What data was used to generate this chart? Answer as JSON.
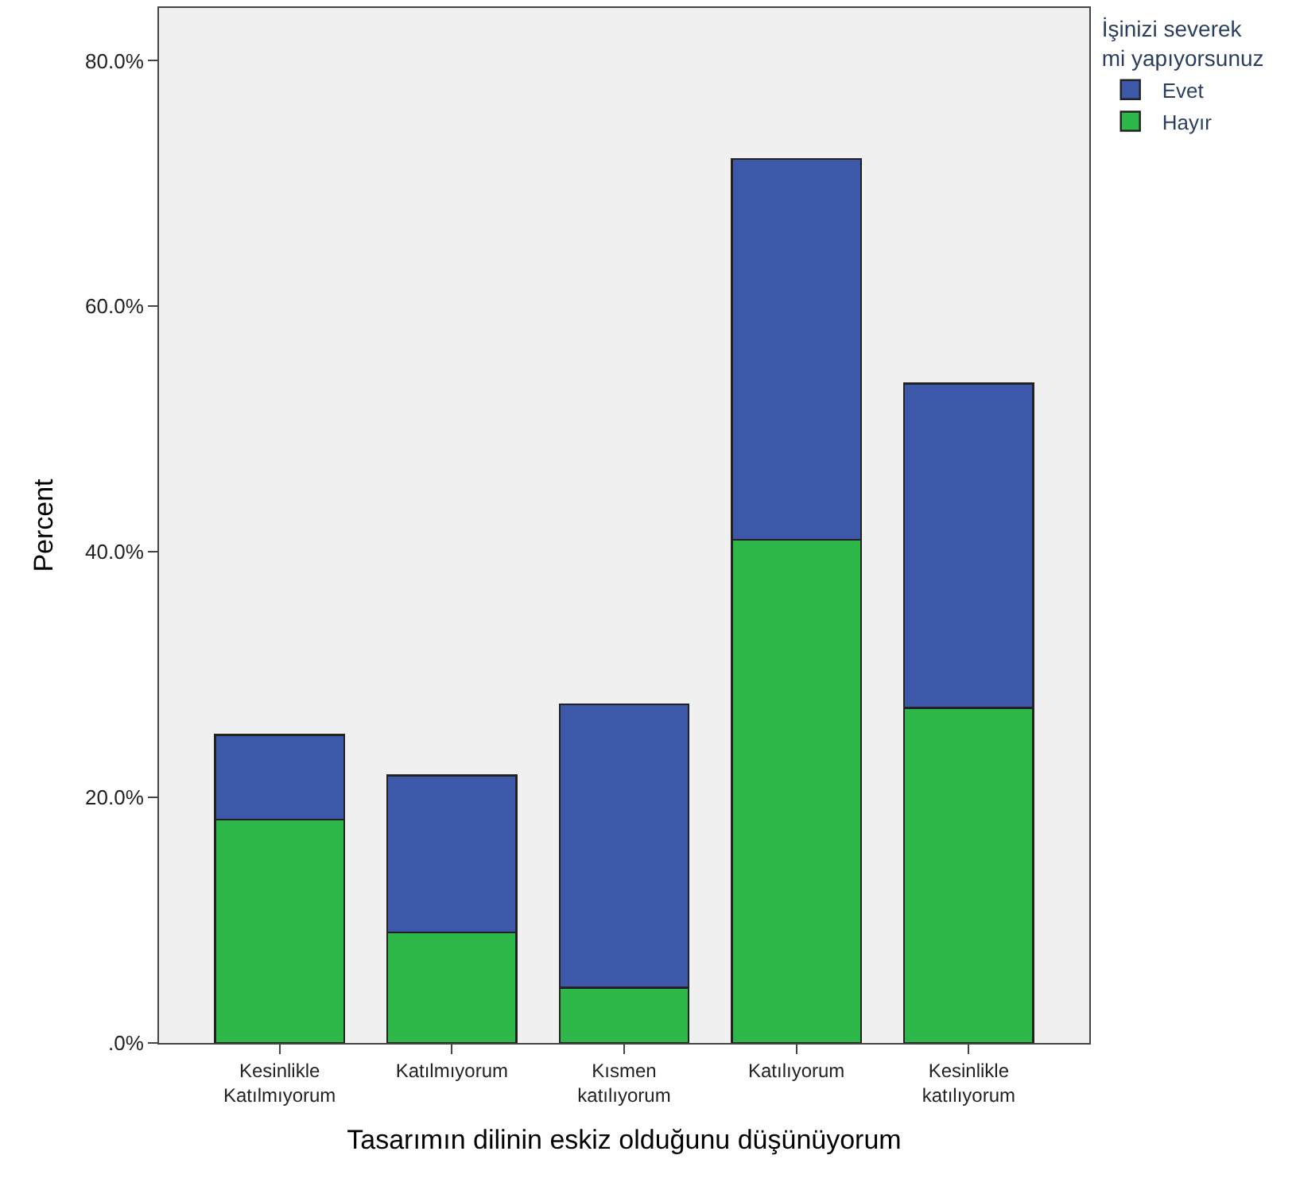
{
  "chart_data": {
    "type": "bar",
    "stacked": true,
    "xlabel": "Tasarımın dilinin eskiz olduğunu düşünüyorum",
    "ylabel": "Percent",
    "legend_title": "İşinizi severek mi yapıyorsunuz",
    "legend": "top right",
    "grid": false,
    "categories": [
      "Kesinlikle Katılmıyorum",
      "Katılmıyorum",
      "Kısmen katılıyorum",
      "Katılıyorum",
      "Kesinlikle katılıyorum"
    ],
    "series": [
      {
        "name": "Hayır",
        "color": "#2fb84a",
        "values": [
          18.2,
          9.0,
          4.5,
          41.0,
          27.3
        ]
      },
      {
        "name": "Evet",
        "color": "#3d57a9",
        "values": [
          6.9,
          12.8,
          23.1,
          31.0,
          26.4
        ]
      }
    ],
    "ylim": [
      0,
      84.3
    ],
    "yticks": [
      {
        "value": 0,
        "label": ".0%"
      },
      {
        "value": 20,
        "label": "20.0%"
      },
      {
        "value": 40,
        "label": "40.0%"
      },
      {
        "value": 60,
        "label": "60.0%"
      },
      {
        "value": 80,
        "label": "80.0%"
      }
    ]
  }
}
